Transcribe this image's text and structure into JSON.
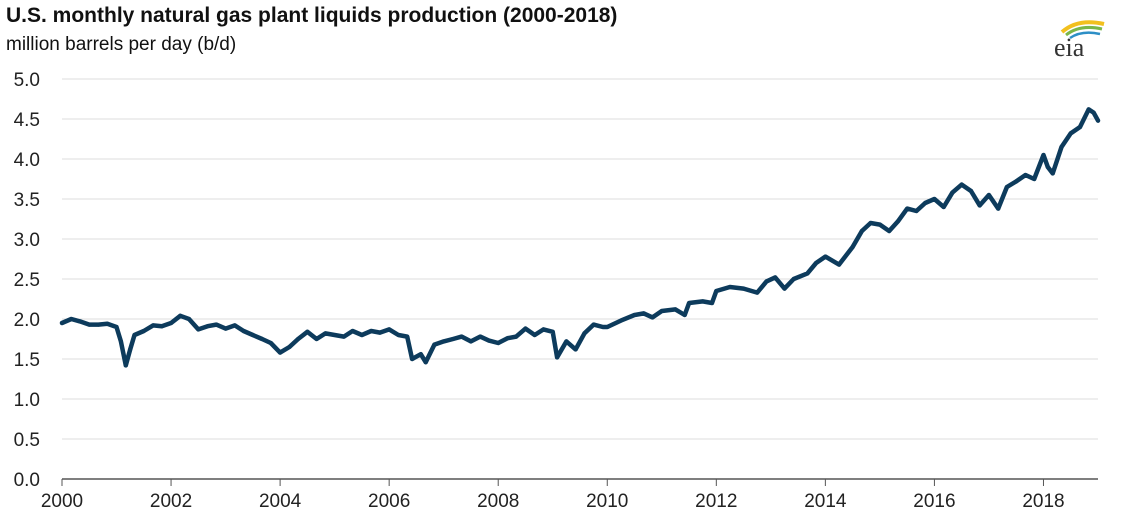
{
  "chart_data": {
    "type": "line",
    "title": "U.S. monthly natural gas plant liquids production (2000-2018)",
    "subtitle": "million barrels per day (b/d)",
    "xlabel": "",
    "ylabel": "",
    "xlim": [
      2000,
      2019
    ],
    "ylim": [
      0,
      5
    ],
    "y_ticks": [
      "0.0",
      "0.5",
      "1.0",
      "1.5",
      "2.0",
      "2.5",
      "3.0",
      "3.5",
      "4.0",
      "4.5",
      "5.0"
    ],
    "x_ticks": [
      "2000",
      "2002",
      "2004",
      "2006",
      "2008",
      "2010",
      "2012",
      "2014",
      "2016",
      "2018"
    ],
    "grid": "horizontal",
    "legend": "none",
    "series": [
      {
        "color": "#0d3b5c",
        "points": [
          [
            2000.0,
            1.95
          ],
          [
            2000.17,
            2.0
          ],
          [
            2000.33,
            1.97
          ],
          [
            2000.5,
            1.93
          ],
          [
            2000.67,
            1.93
          ],
          [
            2000.83,
            1.94
          ],
          [
            2001.0,
            1.9
          ],
          [
            2001.08,
            1.72
          ],
          [
            2001.17,
            1.42
          ],
          [
            2001.25,
            1.62
          ],
          [
            2001.33,
            1.8
          ],
          [
            2001.5,
            1.85
          ],
          [
            2001.67,
            1.92
          ],
          [
            2001.83,
            1.91
          ],
          [
            2002.0,
            1.95
          ],
          [
            2002.17,
            2.04
          ],
          [
            2002.33,
            2.0
          ],
          [
            2002.5,
            1.87
          ],
          [
            2002.67,
            1.91
          ],
          [
            2002.83,
            1.93
          ],
          [
            2003.0,
            1.88
          ],
          [
            2003.17,
            1.92
          ],
          [
            2003.33,
            1.85
          ],
          [
            2003.5,
            1.8
          ],
          [
            2003.67,
            1.75
          ],
          [
            2003.83,
            1.7
          ],
          [
            2004.0,
            1.58
          ],
          [
            2004.17,
            1.65
          ],
          [
            2004.33,
            1.75
          ],
          [
            2004.5,
            1.84
          ],
          [
            2004.67,
            1.75
          ],
          [
            2004.83,
            1.82
          ],
          [
            2005.0,
            1.8
          ],
          [
            2005.17,
            1.78
          ],
          [
            2005.33,
            1.85
          ],
          [
            2005.5,
            1.8
          ],
          [
            2005.67,
            1.85
          ],
          [
            2005.83,
            1.83
          ],
          [
            2006.0,
            1.87
          ],
          [
            2006.17,
            1.8
          ],
          [
            2006.33,
            1.78
          ],
          [
            2006.42,
            1.5
          ],
          [
            2006.58,
            1.56
          ],
          [
            2006.67,
            1.46
          ],
          [
            2006.83,
            1.68
          ],
          [
            2007.0,
            1.72
          ],
          [
            2007.17,
            1.75
          ],
          [
            2007.33,
            1.78
          ],
          [
            2007.5,
            1.72
          ],
          [
            2007.67,
            1.78
          ],
          [
            2007.83,
            1.73
          ],
          [
            2008.0,
            1.7
          ],
          [
            2008.17,
            1.76
          ],
          [
            2008.33,
            1.78
          ],
          [
            2008.5,
            1.88
          ],
          [
            2008.67,
            1.8
          ],
          [
            2008.83,
            1.87
          ],
          [
            2009.0,
            1.84
          ],
          [
            2009.08,
            1.52
          ],
          [
            2009.25,
            1.72
          ],
          [
            2009.42,
            1.62
          ],
          [
            2009.58,
            1.82
          ],
          [
            2009.75,
            1.93
          ],
          [
            2009.92,
            1.9
          ],
          [
            2010.0,
            1.9
          ],
          [
            2010.25,
            1.98
          ],
          [
            2010.5,
            2.05
          ],
          [
            2010.67,
            2.07
          ],
          [
            2010.83,
            2.02
          ],
          [
            2011.0,
            2.1
          ],
          [
            2011.25,
            2.12
          ],
          [
            2011.42,
            2.05
          ],
          [
            2011.5,
            2.2
          ],
          [
            2011.75,
            2.22
          ],
          [
            2011.92,
            2.2
          ],
          [
            2012.0,
            2.35
          ],
          [
            2012.25,
            2.4
          ],
          [
            2012.5,
            2.38
          ],
          [
            2012.75,
            2.33
          ],
          [
            2012.92,
            2.47
          ],
          [
            2013.08,
            2.52
          ],
          [
            2013.25,
            2.38
          ],
          [
            2013.42,
            2.5
          ],
          [
            2013.67,
            2.57
          ],
          [
            2013.83,
            2.7
          ],
          [
            2014.0,
            2.78
          ],
          [
            2014.25,
            2.68
          ],
          [
            2014.5,
            2.9
          ],
          [
            2014.67,
            3.1
          ],
          [
            2014.83,
            3.2
          ],
          [
            2015.0,
            3.18
          ],
          [
            2015.17,
            3.1
          ],
          [
            2015.33,
            3.22
          ],
          [
            2015.5,
            3.38
          ],
          [
            2015.67,
            3.35
          ],
          [
            2015.83,
            3.45
          ],
          [
            2016.0,
            3.5
          ],
          [
            2016.17,
            3.4
          ],
          [
            2016.33,
            3.58
          ],
          [
            2016.5,
            3.68
          ],
          [
            2016.67,
            3.6
          ],
          [
            2016.83,
            3.42
          ],
          [
            2017.0,
            3.55
          ],
          [
            2017.17,
            3.38
          ],
          [
            2017.33,
            3.65
          ],
          [
            2017.5,
            3.72
          ],
          [
            2017.67,
            3.8
          ],
          [
            2017.83,
            3.75
          ],
          [
            2018.0,
            4.05
          ],
          [
            2018.08,
            3.9
          ],
          [
            2018.17,
            3.82
          ],
          [
            2018.33,
            4.15
          ],
          [
            2018.5,
            4.32
          ],
          [
            2018.67,
            4.4
          ],
          [
            2018.83,
            4.62
          ],
          [
            2018.92,
            4.58
          ],
          [
            2019.0,
            4.48
          ]
        ]
      }
    ]
  }
}
